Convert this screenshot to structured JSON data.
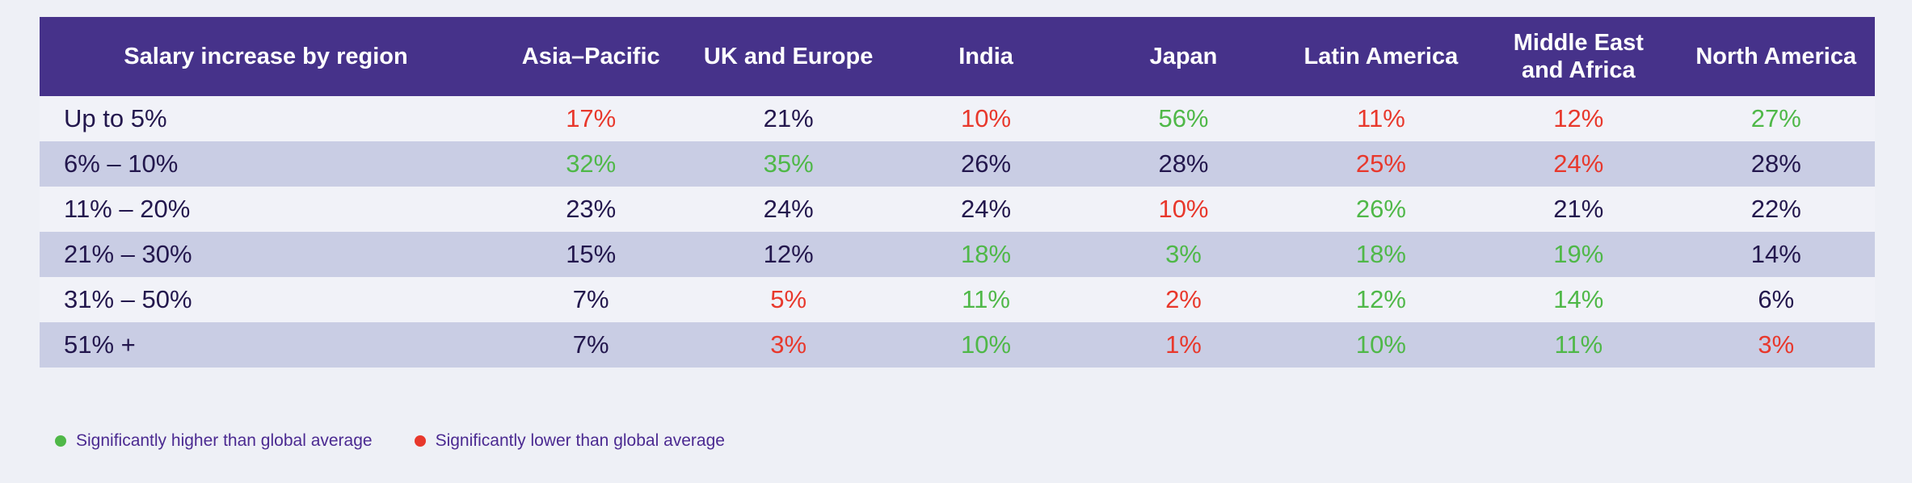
{
  "chart_data": {
    "type": "table",
    "title": "Salary increase by region",
    "columns": [
      "Asia–Pacific",
      "UK and Europe",
      "India",
      "Japan",
      "Latin America",
      "Middle East and Africa",
      "North America"
    ],
    "rows": [
      {
        "label": "Up to 5%",
        "values": [
          "17%",
          "21%",
          "10%",
          "56%",
          "11%",
          "12%",
          "27%"
        ],
        "status": [
          "lower",
          "none",
          "lower",
          "higher",
          "lower",
          "lower",
          "higher"
        ]
      },
      {
        "label": "6% – 10%",
        "values": [
          "32%",
          "35%",
          "26%",
          "28%",
          "25%",
          "24%",
          "28%"
        ],
        "status": [
          "higher",
          "higher",
          "none",
          "none",
          "lower",
          "lower",
          "none"
        ]
      },
      {
        "label": "11% – 20%",
        "values": [
          "23%",
          "24%",
          "24%",
          "10%",
          "26%",
          "21%",
          "22%"
        ],
        "status": [
          "none",
          "none",
          "none",
          "lower",
          "higher",
          "none",
          "none"
        ]
      },
      {
        "label": "21% – 30%",
        "values": [
          "15%",
          "12%",
          "18%",
          "3%",
          "18%",
          "19%",
          "14%"
        ],
        "status": [
          "none",
          "none",
          "higher",
          "higher",
          "higher",
          "higher",
          "none"
        ]
      },
      {
        "label": "31% – 50%",
        "values": [
          "7%",
          "5%",
          "11%",
          "2%",
          "12%",
          "14%",
          "6%"
        ],
        "status": [
          "none",
          "lower",
          "higher",
          "lower",
          "higher",
          "higher",
          "none"
        ]
      },
      {
        "label": "51% +",
        "values": [
          "7%",
          "3%",
          "10%",
          "1%",
          "10%",
          "11%",
          "3%"
        ],
        "status": [
          "none",
          "lower",
          "higher",
          "lower",
          "higher",
          "higher",
          "lower"
        ]
      }
    ],
    "legend": {
      "higher": "Significantly higher than global average",
      "lower": "Significantly lower than global average"
    }
  },
  "colors": {
    "page_bg": "#eef0f6",
    "header_bg": "#46328a",
    "header_text": "#ffffff",
    "row_bg": "#f1f2f8",
    "alt_row_bg": "#c9cde4",
    "value_default": "#23174d",
    "higher": "#4fb848",
    "lower": "#e8382c",
    "legend_text": "#4b2a91"
  }
}
